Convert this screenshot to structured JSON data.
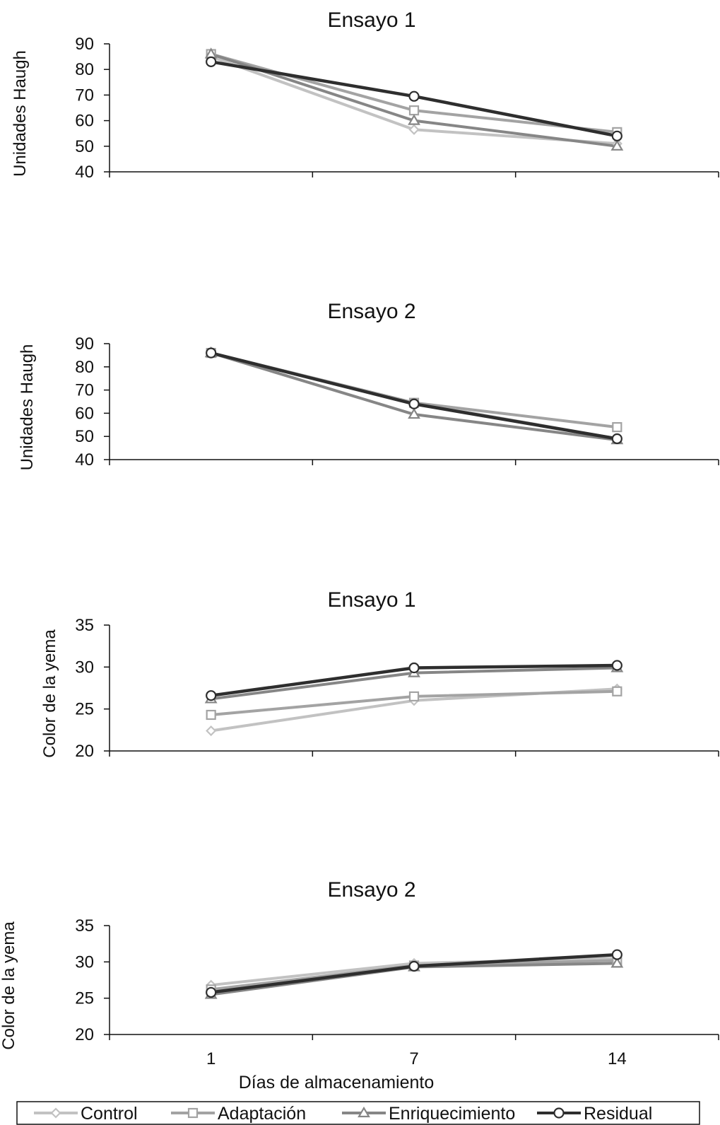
{
  "chart_data": [
    {
      "type": "line",
      "title": "Ensayo 1",
      "ylabel": "Unidades Haugh",
      "xlabel": "",
      "ylim": [
        40,
        90
      ],
      "yticks": [
        40,
        50,
        60,
        70,
        80,
        90
      ],
      "categories": [
        "1",
        "7",
        "14"
      ],
      "show_x_tick_labels": false,
      "grid": false,
      "series": [
        {
          "name": "Control",
          "values": [
            85,
            56.5,
            51
          ]
        },
        {
          "name": "Adaptación",
          "values": [
            86,
            64,
            55.5
          ]
        },
        {
          "name": "Enriquecimiento",
          "values": [
            86,
            60,
            50
          ]
        },
        {
          "name": "Residual",
          "values": [
            83,
            69.5,
            54
          ]
        }
      ]
    },
    {
      "type": "line",
      "title": "Ensayo 2",
      "ylabel": "Unidades Haugh",
      "xlabel": "",
      "ylim": [
        40,
        90
      ],
      "yticks": [
        40,
        50,
        60,
        70,
        80,
        90
      ],
      "categories": [
        "1",
        "7",
        "14"
      ],
      "show_x_tick_labels": false,
      "grid": false,
      "series": [
        {
          "name": "Control",
          "values": [
            86,
            64.5,
            49
          ]
        },
        {
          "name": "Adaptación",
          "values": [
            86,
            64.5,
            54
          ]
        },
        {
          "name": "Enriquecimiento",
          "values": [
            86,
            59.5,
            48.5
          ]
        },
        {
          "name": "Residual",
          "values": [
            86,
            64,
            49
          ]
        }
      ]
    },
    {
      "type": "line",
      "title": "Ensayo 1",
      "ylabel": "Color de la yema",
      "xlabel": "",
      "ylim": [
        20,
        35
      ],
      "yticks": [
        20,
        25,
        30,
        35
      ],
      "categories": [
        "1",
        "7",
        "14"
      ],
      "show_x_tick_labels": false,
      "grid": false,
      "series": [
        {
          "name": "Control",
          "values": [
            22.4,
            26,
            27.4
          ]
        },
        {
          "name": "Adaptación",
          "values": [
            24.3,
            26.5,
            27.1
          ]
        },
        {
          "name": "Enriquecimiento",
          "values": [
            26.2,
            29.3,
            29.9
          ]
        },
        {
          "name": "Residual",
          "values": [
            26.6,
            29.9,
            30.2
          ]
        }
      ]
    },
    {
      "type": "line",
      "title": "Ensayo 2",
      "ylabel": "Color de la yema",
      "xlabel": "Días de almacenamiento",
      "ylim": [
        20,
        35
      ],
      "yticks": [
        20,
        25,
        30,
        35
      ],
      "categories": [
        "1",
        "7",
        "14"
      ],
      "show_x_tick_labels": true,
      "grid": false,
      "series": [
        {
          "name": "Control",
          "values": [
            26.8,
            29.8,
            30.5
          ]
        },
        {
          "name": "Adaptación",
          "values": [
            26.2,
            29.5,
            30.2
          ]
        },
        {
          "name": "Enriquecimiento",
          "values": [
            25.5,
            29.3,
            29.8
          ]
        },
        {
          "name": "Residual",
          "values": [
            25.8,
            29.4,
            31
          ]
        }
      ]
    }
  ],
  "legend": {
    "placement": "bottom",
    "items": [
      {
        "name": "Control",
        "color": "#c2c2c2",
        "marker": "diamond"
      },
      {
        "name": "Adaptación",
        "color": "#a3a3a3",
        "marker": "square"
      },
      {
        "name": "Enriquecimiento",
        "color": "#868686",
        "marker": "triangle"
      },
      {
        "name": "Residual",
        "color": "#2e2e2e",
        "marker": "circle"
      }
    ]
  }
}
